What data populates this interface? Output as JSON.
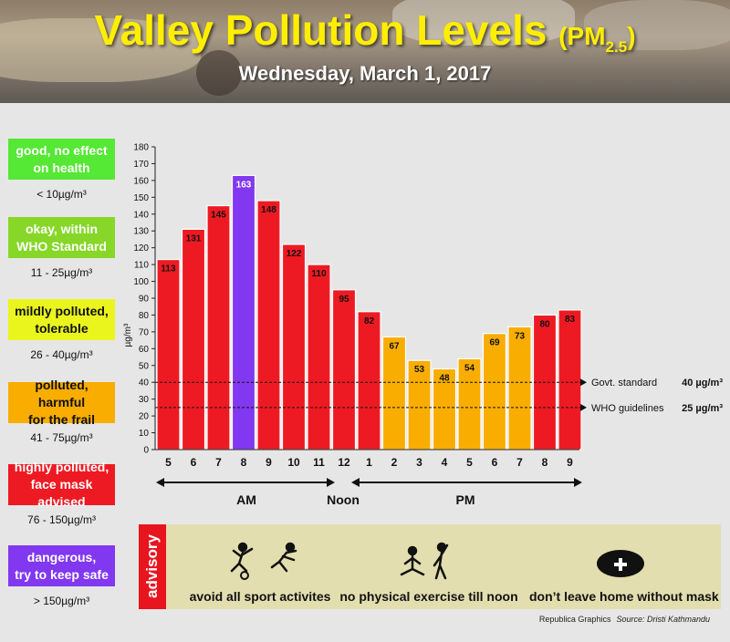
{
  "header": {
    "title": "Valley Pollution Levels",
    "title_pm": "PM",
    "title_sub": "2.5",
    "date": "Wednesday, March 1, 2017"
  },
  "legend": [
    {
      "label_line1": "good, no effect",
      "label_line2": "on health",
      "range": "< 10µg/m³",
      "color": "#55e834",
      "text_color": "#ffffff"
    },
    {
      "label_line1": "okay, within",
      "label_line2": "WHO Standard",
      "range": "11 - 25µg/m³",
      "color": "#86d728",
      "text_color": "#ffffff"
    },
    {
      "label_line1": "mildly polluted,",
      "label_line2": "tolerable",
      "range": "26 - 40µg/m³",
      "color": "#eaf51e",
      "text_color": "#111111"
    },
    {
      "label_line1": "polluted, harmful",
      "label_line2": "for the frail",
      "range": "41 - 75µg/m³",
      "color": "#f8ad00",
      "text_color": "#111111"
    },
    {
      "label_line1": "highly polluted,",
      "label_line2": "face mask advised",
      "range": "76 - 150µg/m³",
      "color": "#ee1a23",
      "text_color": "#ffffff"
    },
    {
      "label_line1": "dangerous,",
      "label_line2": "try to keep safe",
      "range": "> 150µg/m³",
      "color": "#8238f0",
      "text_color": "#ffffff"
    }
  ],
  "chart_data": {
    "type": "bar",
    "categories": [
      "5",
      "6",
      "7",
      "8",
      "9",
      "10",
      "11",
      "12",
      "1",
      "2",
      "3",
      "4",
      "5",
      "6",
      "7",
      "8",
      "9"
    ],
    "values": [
      113,
      131,
      145,
      163,
      148,
      122,
      110,
      95,
      82,
      67,
      53,
      48,
      54,
      69,
      73,
      80,
      83
    ],
    "ylabel": "µg/m³",
    "ylim": [
      0,
      180
    ],
    "yticks": [
      0,
      10,
      20,
      30,
      40,
      50,
      60,
      70,
      80,
      90,
      100,
      110,
      120,
      130,
      140,
      150,
      160,
      170,
      180
    ],
    "period_labels": {
      "am": "AM",
      "noon": "Noon",
      "pm": "PM"
    },
    "reference_lines": [
      {
        "value": 40,
        "label": "Govt. standard",
        "value_label": "40 µg/m³"
      },
      {
        "value": 25,
        "label": "WHO guidelines",
        "value_label": "25 µg/m³"
      }
    ],
    "colors": {
      "purple": "#8238f0",
      "red": "#ee1a23",
      "orange": "#f8ad00"
    }
  },
  "advisory": {
    "tag": "advisory",
    "items": [
      {
        "text": "avoid all sport activites",
        "icon": "sport-icon"
      },
      {
        "text": "no physical exercise till noon",
        "icon": "exercise-icon"
      },
      {
        "text": "don’t leave home without mask",
        "icon": "mask-icon"
      }
    ]
  },
  "credit": {
    "publisher": "Republica Graphics",
    "source": "Source: Dristi Kathmandu"
  }
}
